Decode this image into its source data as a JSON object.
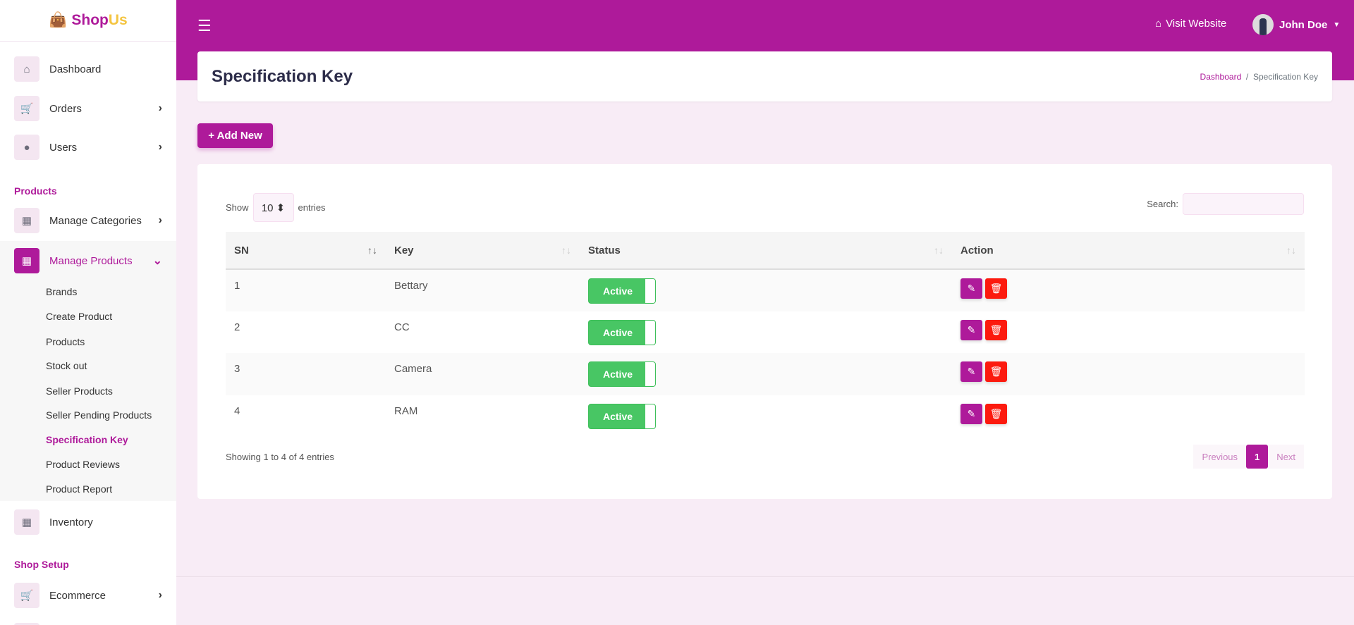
{
  "brand": {
    "part1": "Shop",
    "part2": "Us"
  },
  "sidebar": {
    "items": [
      {
        "label": "Dashboard",
        "icon": "home-icon"
      },
      {
        "label": "Orders",
        "icon": "cart-icon"
      },
      {
        "label": "Users",
        "icon": "user-icon"
      }
    ],
    "sections": [
      "Products",
      "Shop Setup"
    ],
    "products_items": [
      {
        "label": "Manage Categories"
      },
      {
        "label": "Manage Products"
      }
    ],
    "sub_items": [
      "Brands",
      "Create Product",
      "Products",
      "Stock out",
      "Seller Products",
      "Seller Pending Products",
      "Specification Key",
      "Product Reviews",
      "Product Report"
    ],
    "inventory": "Inventory",
    "ecommerce": "Ecommerce"
  },
  "header": {
    "visit": "Visit Website",
    "user": "John Doe"
  },
  "page": {
    "title": "Specification Key",
    "breadcrumb": [
      "Dashboard",
      "Specification Key"
    ]
  },
  "add_new": "+ Add New",
  "table": {
    "show": "Show",
    "entries_value": "10 ⬍",
    "entries": "entries",
    "search": "Search:",
    "columns": [
      "SN",
      "Key",
      "Status",
      "Action"
    ],
    "rows": [
      {
        "sn": "1",
        "key": "Bettary",
        "status": "Active"
      },
      {
        "sn": "2",
        "key": "CC",
        "status": "Active"
      },
      {
        "sn": "3",
        "key": "Camera",
        "status": "Active"
      },
      {
        "sn": "4",
        "key": "RAM",
        "status": "Active"
      }
    ],
    "info": "Showing 1 to 4 of 4 entries",
    "pager": {
      "prev": "Previous",
      "page": "1",
      "next": "Next"
    }
  },
  "colors": {
    "primary": "#ae1a9a",
    "success": "#48c664",
    "danger": "#fc1a0e"
  }
}
